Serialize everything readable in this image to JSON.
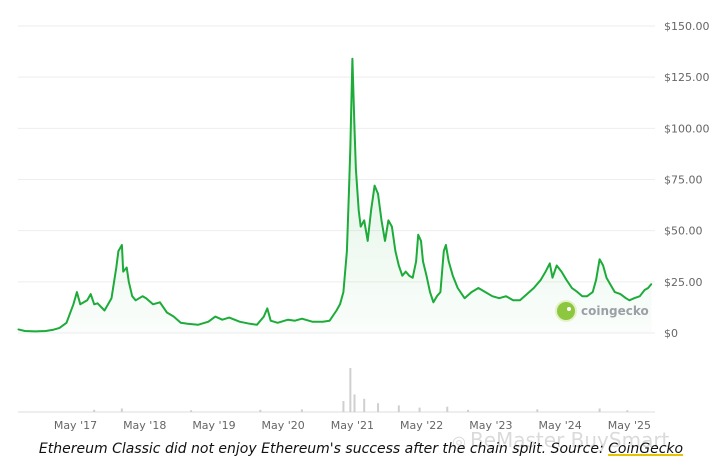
{
  "chart_data": {
    "type": "line",
    "title": "",
    "xlabel": "",
    "ylabel": "",
    "ylim": [
      0,
      150
    ],
    "yticks": [
      "$150.00",
      "$125.00",
      "$100.00",
      "$75.00",
      "$50.00",
      "$25.00",
      "$0"
    ],
    "ytick_values": [
      150,
      125,
      100,
      75,
      50,
      25,
      0
    ],
    "xticks": [
      "May '17",
      "May '18",
      "May '19",
      "May '20",
      "May '21",
      "May '22",
      "May '23",
      "May '24",
      "May '25"
    ],
    "xtick_values": [
      2017.33,
      2018.33,
      2019.33,
      2020.33,
      2021.33,
      2022.33,
      2023.33,
      2024.33,
      2025.33
    ],
    "xlim": [
      2016.5,
      2025.7
    ],
    "grid": true,
    "series": [
      {
        "color": "#1dab3a",
        "points": [
          [
            2016.5,
            1.8
          ],
          [
            2016.6,
            1.0
          ],
          [
            2016.75,
            0.8
          ],
          [
            2016.9,
            1.0
          ],
          [
            2017.0,
            1.5
          ],
          [
            2017.1,
            2.5
          ],
          [
            2017.2,
            5.0
          ],
          [
            2017.3,
            14.0
          ],
          [
            2017.35,
            20.0
          ],
          [
            2017.4,
            14.0
          ],
          [
            2017.5,
            16.0
          ],
          [
            2017.55,
            19.0
          ],
          [
            2017.6,
            14.0
          ],
          [
            2017.65,
            14.5
          ],
          [
            2017.75,
            11.0
          ],
          [
            2017.85,
            17.0
          ],
          [
            2017.92,
            32.0
          ],
          [
            2017.95,
            40.0
          ],
          [
            2018.0,
            43.0
          ],
          [
            2018.02,
            30.0
          ],
          [
            2018.07,
            32.0
          ],
          [
            2018.1,
            25.0
          ],
          [
            2018.15,
            18.0
          ],
          [
            2018.2,
            16.0
          ],
          [
            2018.3,
            18.0
          ],
          [
            2018.35,
            17.0
          ],
          [
            2018.45,
            14.0
          ],
          [
            2018.55,
            15.0
          ],
          [
            2018.65,
            10.0
          ],
          [
            2018.75,
            8.0
          ],
          [
            2018.85,
            5.0
          ],
          [
            2018.95,
            4.5
          ],
          [
            2019.1,
            4.0
          ],
          [
            2019.25,
            5.5
          ],
          [
            2019.35,
            8.0
          ],
          [
            2019.45,
            6.5
          ],
          [
            2019.55,
            7.5
          ],
          [
            2019.7,
            5.5
          ],
          [
            2019.85,
            4.5
          ],
          [
            2019.95,
            4.0
          ],
          [
            2020.05,
            8.0
          ],
          [
            2020.1,
            12.0
          ],
          [
            2020.15,
            6.0
          ],
          [
            2020.25,
            5.0
          ],
          [
            2020.4,
            6.5
          ],
          [
            2020.5,
            6.0
          ],
          [
            2020.6,
            7.0
          ],
          [
            2020.75,
            5.5
          ],
          [
            2020.9,
            5.5
          ],
          [
            2021.0,
            6.0
          ],
          [
            2021.1,
            11.0
          ],
          [
            2021.15,
            14.0
          ],
          [
            2021.2,
            20.0
          ],
          [
            2021.25,
            40.0
          ],
          [
            2021.28,
            70.0
          ],
          [
            2021.3,
            90.0
          ],
          [
            2021.33,
            134.0
          ],
          [
            2021.36,
            100.0
          ],
          [
            2021.38,
            80.0
          ],
          [
            2021.42,
            60.0
          ],
          [
            2021.45,
            52.0
          ],
          [
            2021.5,
            55.0
          ],
          [
            2021.55,
            45.0
          ],
          [
            2021.6,
            60.0
          ],
          [
            2021.65,
            72.0
          ],
          [
            2021.7,
            68.0
          ],
          [
            2021.75,
            55.0
          ],
          [
            2021.8,
            45.0
          ],
          [
            2021.85,
            55.0
          ],
          [
            2021.9,
            52.0
          ],
          [
            2021.95,
            40.0
          ],
          [
            2022.0,
            33.0
          ],
          [
            2022.05,
            28.0
          ],
          [
            2022.1,
            30.0
          ],
          [
            2022.15,
            28.0
          ],
          [
            2022.2,
            27.0
          ],
          [
            2022.25,
            35.0
          ],
          [
            2022.28,
            48.0
          ],
          [
            2022.32,
            45.0
          ],
          [
            2022.35,
            35.0
          ],
          [
            2022.4,
            28.0
          ],
          [
            2022.45,
            20.0
          ],
          [
            2022.5,
            15.0
          ],
          [
            2022.55,
            18.0
          ],
          [
            2022.6,
            20.0
          ],
          [
            2022.65,
            40.0
          ],
          [
            2022.68,
            43.0
          ],
          [
            2022.72,
            35.0
          ],
          [
            2022.78,
            28.0
          ],
          [
            2022.85,
            22.0
          ],
          [
            2022.95,
            17.0
          ],
          [
            2023.05,
            20.0
          ],
          [
            2023.15,
            22.0
          ],
          [
            2023.25,
            20.0
          ],
          [
            2023.35,
            18.0
          ],
          [
            2023.45,
            17.0
          ],
          [
            2023.55,
            18.0
          ],
          [
            2023.65,
            16.0
          ],
          [
            2023.75,
            16.0
          ],
          [
            2023.85,
            19.0
          ],
          [
            2023.95,
            22.0
          ],
          [
            2024.05,
            26.0
          ],
          [
            2024.12,
            30.0
          ],
          [
            2024.18,
            34.0
          ],
          [
            2024.22,
            27.0
          ],
          [
            2024.28,
            33.0
          ],
          [
            2024.35,
            30.0
          ],
          [
            2024.42,
            26.0
          ],
          [
            2024.5,
            22.0
          ],
          [
            2024.58,
            20.0
          ],
          [
            2024.65,
            18.0
          ],
          [
            2024.72,
            18.0
          ],
          [
            2024.8,
            20.0
          ],
          [
            2024.85,
            26.0
          ],
          [
            2024.9,
            36.0
          ],
          [
            2024.95,
            33.0
          ],
          [
            2025.0,
            27.0
          ],
          [
            2025.05,
            24.0
          ],
          [
            2025.12,
            20.0
          ],
          [
            2025.2,
            19.0
          ],
          [
            2025.28,
            17.0
          ],
          [
            2025.33,
            16.0
          ],
          [
            2025.4,
            17.0
          ],
          [
            2025.48,
            18.0
          ],
          [
            2025.55,
            21.0
          ],
          [
            2025.6,
            22.0
          ],
          [
            2025.65,
            24.0
          ]
        ]
      }
    ],
    "volume": {
      "color": "#cfcfcf",
      "points": [
        [
          2017.6,
          0.05
        ],
        [
          2018.0,
          0.08
        ],
        [
          2019.0,
          0.04
        ],
        [
          2020.0,
          0.05
        ],
        [
          2020.6,
          0.06
        ],
        [
          2021.2,
          0.25
        ],
        [
          2021.3,
          1.0
        ],
        [
          2021.36,
          0.4
        ],
        [
          2021.5,
          0.3
        ],
        [
          2021.7,
          0.2
        ],
        [
          2022.0,
          0.15
        ],
        [
          2022.3,
          0.1
        ],
        [
          2022.7,
          0.12
        ],
        [
          2023.0,
          0.05
        ],
        [
          2024.0,
          0.06
        ],
        [
          2024.9,
          0.08
        ],
        [
          2025.3,
          0.04
        ]
      ]
    }
  },
  "logo": {
    "name": "coingecko-logo",
    "text": "coingecko"
  },
  "caption": {
    "text": "Ethereum Classic did not enjoy Ethereum's success after the chain split. Source: ",
    "link": "CoinGecko"
  },
  "watermark": {
    "text": "BeMaster BuySmart"
  },
  "colors": {
    "line": "#1dab3a",
    "fill": "#e9f7ec",
    "grid": "#eeeeee",
    "axis": "#666666"
  }
}
